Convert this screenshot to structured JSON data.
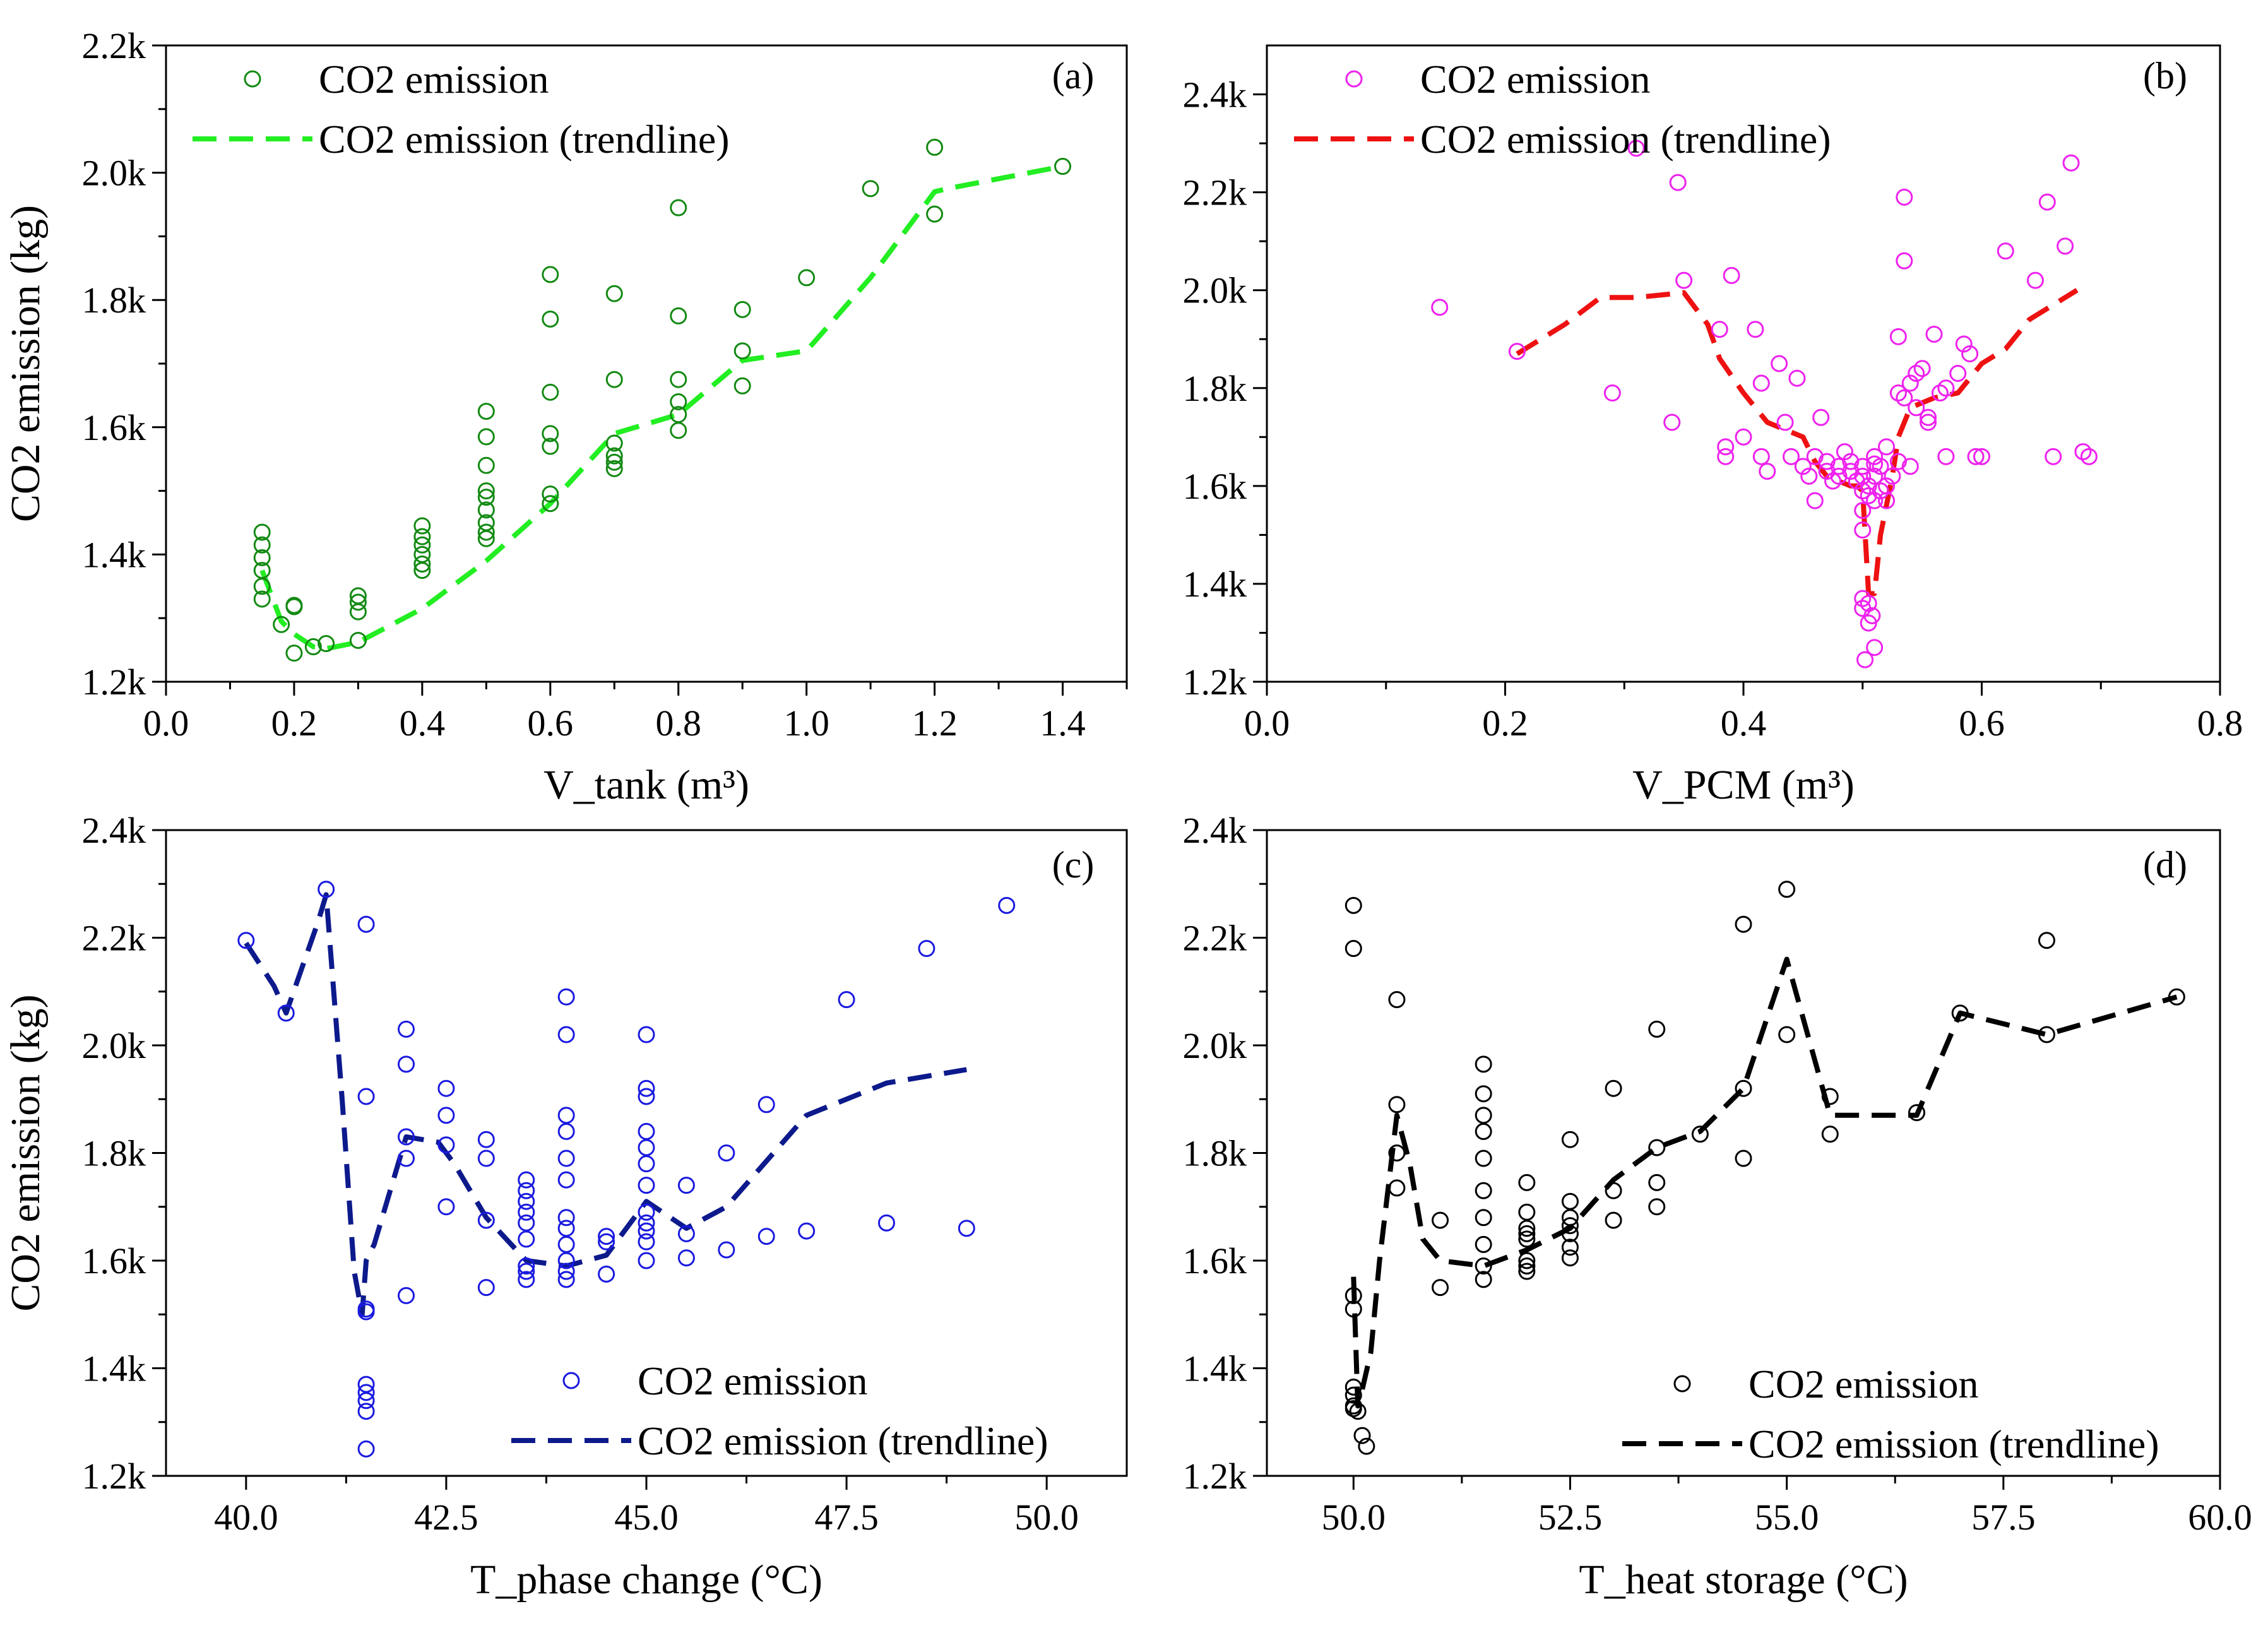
{
  "chart_data": [
    {
      "type": "scatter",
      "panel_label": "(a)",
      "xlabel": "V_tank (m³)",
      "ylabel": "CO2 emission (kg)",
      "xlim": [
        0.0,
        1.5
      ],
      "ylim": [
        1200,
        2200
      ],
      "xticks": [
        "0.0",
        "0.2",
        "0.4",
        "0.6",
        "0.8",
        "1.0",
        "1.2",
        "1.4"
      ],
      "yticks": [
        "1.2k",
        "1.4k",
        "1.6k",
        "1.8k",
        "2.0k",
        "2.2k"
      ],
      "legend_position": "top-left",
      "series": [
        {
          "name": "CO2 emission",
          "kind": "scatter",
          "color": "#138a13",
          "x": [
            0.15,
            0.15,
            0.15,
            0.15,
            0.15,
            0.15,
            0.18,
            0.2,
            0.2,
            0.2,
            0.23,
            0.25,
            0.3,
            0.3,
            0.3,
            0.3,
            0.4,
            0.4,
            0.4,
            0.4,
            0.4,
            0.4,
            0.5,
            0.5,
            0.5,
            0.5,
            0.5,
            0.5,
            0.5,
            0.5,
            0.5,
            0.6,
            0.6,
            0.6,
            0.6,
            0.6,
            0.6,
            0.6,
            0.7,
            0.7,
            0.7,
            0.7,
            0.7,
            0.7,
            0.8,
            0.8,
            0.8,
            0.8,
            0.8,
            0.8,
            0.9,
            0.9,
            0.9,
            1.0,
            1.1,
            1.2,
            1.2,
            1.4
          ],
          "y": [
            1330,
            1350,
            1375,
            1395,
            1415,
            1435,
            1290,
            1320,
            1318,
            1245,
            1255,
            1260,
            1265,
            1310,
            1325,
            1335,
            1375,
            1385,
            1400,
            1415,
            1428,
            1445,
            1425,
            1435,
            1450,
            1470,
            1490,
            1500,
            1540,
            1585,
            1625,
            1480,
            1495,
            1570,
            1590,
            1655,
            1770,
            1840,
            1535,
            1545,
            1555,
            1575,
            1675,
            1810,
            1595,
            1620,
            1640,
            1675,
            1775,
            1945,
            1665,
            1720,
            1785,
            1835,
            1975,
            1935,
            2040,
            2010
          ]
        },
        {
          "name": "CO2 emission (trendline)",
          "kind": "line",
          "color": "#22ee22",
          "x": [
            0.15,
            0.18,
            0.2,
            0.23,
            0.25,
            0.3,
            0.4,
            0.5,
            0.6,
            0.7,
            0.8,
            0.9,
            1.0,
            1.1,
            1.2,
            1.22,
            1.4
          ],
          "y": [
            1375,
            1295,
            1275,
            1255,
            1252,
            1262,
            1315,
            1390,
            1480,
            1590,
            1620,
            1705,
            1720,
            1835,
            1970,
            1975,
            2010
          ]
        }
      ]
    },
    {
      "type": "scatter",
      "panel_label": "(b)",
      "xlabel": "V_PCM (m³)",
      "ylabel": "CO2 emission (kg)",
      "xlim": [
        0.0,
        0.8
      ],
      "ylim": [
        1200,
        2500
      ],
      "xticks": [
        "0.0",
        "0.2",
        "0.4",
        "0.6",
        "0.8"
      ],
      "yticks": [
        "1.2k",
        "1.4k",
        "1.6k",
        "1.8k",
        "2.0k",
        "2.2k",
        "2.4k"
      ],
      "legend_position": "top-left",
      "series": [
        {
          "name": "CO2 emission",
          "kind": "scatter",
          "color": "#ee22ee",
          "x": [
            0.145,
            0.21,
            0.29,
            0.31,
            0.34,
            0.345,
            0.35,
            0.38,
            0.385,
            0.385,
            0.39,
            0.4,
            0.41,
            0.415,
            0.415,
            0.42,
            0.43,
            0.435,
            0.44,
            0.445,
            0.45,
            0.455,
            0.46,
            0.46,
            0.465,
            0.47,
            0.47,
            0.475,
            0.48,
            0.48,
            0.485,
            0.49,
            0.49,
            0.495,
            0.5,
            0.5,
            0.5,
            0.5,
            0.5,
            0.505,
            0.505,
            0.51,
            0.51,
            0.51,
            0.51,
            0.515,
            0.515,
            0.52,
            0.52,
            0.52,
            0.525,
            0.53,
            0.53,
            0.53,
            0.535,
            0.535,
            0.535,
            0.54,
            0.54,
            0.545,
            0.545,
            0.55,
            0.555,
            0.555,
            0.56,
            0.565,
            0.57,
            0.57,
            0.58,
            0.585,
            0.59,
            0.595,
            0.6,
            0.62,
            0.645,
            0.655,
            0.66,
            0.67,
            0.675,
            0.685,
            0.69,
            0.5,
            0.505,
            0.505,
            0.508,
            0.51,
            0.5,
            0.502
          ],
          "y": [
            1965,
            1875,
            1790,
            2290,
            1730,
            2220,
            2020,
            1920,
            1660,
            1680,
            2030,
            1700,
            1920,
            1660,
            1810,
            1630,
            1850,
            1730,
            1660,
            1820,
            1640,
            1620,
            1660,
            1570,
            1740,
            1650,
            1630,
            1610,
            1620,
            1640,
            1670,
            1650,
            1630,
            1610,
            1550,
            1510,
            1590,
            1620,
            1640,
            1580,
            1600,
            1570,
            1620,
            1645,
            1660,
            1590,
            1640,
            1570,
            1600,
            1680,
            1620,
            1650,
            1790,
            1905,
            1780,
            2060,
            2190,
            1640,
            1810,
            1760,
            1830,
            1840,
            1730,
            1740,
            1910,
            1790,
            1800,
            1660,
            1830,
            1890,
            1870,
            1660,
            1660,
            2080,
            2020,
            2180,
            1660,
            2090,
            2260,
            1670,
            1660,
            1370,
            1360,
            1320,
            1335,
            1270,
            1350,
            1245
          ]
        },
        {
          "name": "CO2 emission (trendline)",
          "kind": "line",
          "color": "#ee1111",
          "x": [
            0.21,
            0.25,
            0.28,
            0.31,
            0.35,
            0.37,
            0.38,
            0.4,
            0.42,
            0.43,
            0.45,
            0.46,
            0.47,
            0.48,
            0.49,
            0.495,
            0.5,
            0.505,
            0.51,
            0.515,
            0.52,
            0.525,
            0.53,
            0.54,
            0.56,
            0.58,
            0.6,
            0.62,
            0.64,
            0.68
          ],
          "y": [
            1870,
            1930,
            1985,
            1985,
            1995,
            1930,
            1860,
            1790,
            1730,
            1720,
            1700,
            1650,
            1620,
            1610,
            1600,
            1600,
            1590,
            1380,
            1380,
            1500,
            1560,
            1620,
            1700,
            1760,
            1780,
            1790,
            1850,
            1880,
            1940,
            2000
          ]
        }
      ]
    },
    {
      "type": "scatter",
      "panel_label": "(c)",
      "xlabel": "T_phase change (°C)",
      "ylabel": "CO2 emission (kg)",
      "xlim": [
        39.0,
        51.0
      ],
      "ylim": [
        1200,
        2400
      ],
      "xticks": [
        "40.0",
        "42.5",
        "45.0",
        "47.5",
        "50.0"
      ],
      "yticks": [
        "1.2k",
        "1.4k",
        "1.6k",
        "1.8k",
        "2.0k",
        "2.2k",
        "2.4k"
      ],
      "legend_position": "bottom-right",
      "series": [
        {
          "name": "CO2 emission",
          "kind": "scatter",
          "color": "#1a1ae0",
          "x": [
            40,
            40.5,
            41,
            41.5,
            41.5,
            41.5,
            41.5,
            41.5,
            41.5,
            41.5,
            41.5,
            41.5,
            42,
            42,
            42,
            42,
            42,
            42.5,
            42.5,
            42.5,
            42.5,
            43,
            43,
            43,
            43,
            43.5,
            43.5,
            43.5,
            43.5,
            43.5,
            43.5,
            43.5,
            43.5,
            43.5,
            44,
            44,
            44,
            44,
            44,
            44,
            44,
            44,
            44,
            44,
            44,
            44,
            44.5,
            44.5,
            44.5,
            45,
            45,
            45,
            45,
            45,
            45,
            45,
            45,
            45,
            45,
            45,
            45,
            45.5,
            45.5,
            45.5,
            46,
            46,
            46.5,
            46.5,
            47,
            47.5,
            48,
            48.5,
            49,
            49.5
          ],
          "y": [
            2195,
            2060,
            2290,
            2225,
            1905,
            1510,
            1505,
            1370,
            1355,
            1340,
            1320,
            1250,
            2030,
            1965,
            1830,
            1790,
            1535,
            1920,
            1870,
            1815,
            1700,
            1825,
            1790,
            1675,
            1550,
            1750,
            1730,
            1710,
            1690,
            1670,
            1640,
            1590,
            1580,
            1565,
            2090,
            2020,
            1870,
            1840,
            1790,
            1750,
            1680,
            1660,
            1630,
            1600,
            1580,
            1565,
            1645,
            1635,
            1575,
            2020,
            1920,
            1905,
            1840,
            1810,
            1780,
            1740,
            1690,
            1670,
            1655,
            1635,
            1600,
            1740,
            1650,
            1605,
            1800,
            1620,
            1890,
            1645,
            1655,
            2085,
            1670,
            2180,
            1660,
            2260
          ]
        },
        {
          "name": "CO2 emission (trendline)",
          "kind": "line",
          "color": "#0d1a8c",
          "x": [
            40,
            40.35,
            40.5,
            40.9,
            41,
            41.2,
            41.35,
            41.45,
            41.5,
            41.6,
            42,
            42.4,
            42.6,
            43,
            43.5,
            44,
            44.5,
            45,
            45.5,
            46,
            47,
            48,
            49
          ],
          "y": [
            2190,
            2110,
            2060,
            2230,
            2280,
            1900,
            1580,
            1500,
            1600,
            1630,
            1830,
            1820,
            1780,
            1680,
            1600,
            1590,
            1610,
            1710,
            1660,
            1700,
            1870,
            1930,
            1955
          ]
        }
      ]
    },
    {
      "type": "scatter",
      "panel_label": "(d)",
      "xlabel": "T_heat storage (°C)",
      "ylabel": "CO2 emission (kg)",
      "xlim": [
        49.0,
        60.0
      ],
      "ylim": [
        1200,
        2400
      ],
      "xticks": [
        "50.0",
        "52.5",
        "55.0",
        "57.5",
        "60.0"
      ],
      "yticks": [
        "1.2k",
        "1.4k",
        "1.6k",
        "1.8k",
        "2.0k",
        "2.2k",
        "2.4k"
      ],
      "legend_position": "bottom-right",
      "series": [
        {
          "name": "CO2 emission",
          "kind": "scatter",
          "color": "#000000",
          "x": [
            50,
            50,
            50,
            50,
            50,
            50,
            50,
            50,
            50.05,
            50.1,
            50.15,
            50.5,
            50.5,
            50.5,
            50.5,
            51,
            51,
            51.5,
            51.5,
            51.5,
            51.5,
            51.5,
            51.5,
            51.5,
            51.5,
            51.5,
            51.5,
            52,
            52,
            52,
            52,
            52,
            52,
            52,
            52,
            52.5,
            52.5,
            52.5,
            52.5,
            52.5,
            52.5,
            52.5,
            53,
            53,
            53,
            53.5,
            53.5,
            53.5,
            53.5,
            54,
            54.5,
            54.5,
            54.5,
            55,
            55,
            55.5,
            55.5,
            56.5,
            57,
            58,
            58,
            59.5
          ],
          "y": [
            2260,
            2180,
            1535,
            1510,
            1365,
            1350,
            1330,
            1325,
            1320,
            1275,
            1255,
            2085,
            1890,
            1800,
            1735,
            1675,
            1550,
            1965,
            1910,
            1870,
            1840,
            1790,
            1730,
            1680,
            1630,
            1590,
            1565,
            1745,
            1690,
            1660,
            1640,
            1600,
            1590,
            1580,
            1650,
            1825,
            1710,
            1680,
            1665,
            1650,
            1625,
            1605,
            1920,
            1730,
            1675,
            2030,
            1810,
            1745,
            1700,
            1835,
            2225,
            1920,
            1790,
            2290,
            2020,
            1905,
            1835,
            1875,
            2060,
            2195,
            2020,
            2090
          ]
        },
        {
          "name": "CO2 emission (trendline)",
          "kind": "line",
          "color": "#000000",
          "x": [
            50,
            50.05,
            50.1,
            50.2,
            50.3,
            50.5,
            50.65,
            50.8,
            51,
            51.5,
            52,
            52.5,
            53,
            53.5,
            54,
            54.5,
            55,
            55.5,
            56,
            56.5,
            57,
            58,
            59.5
          ],
          "y": [
            1570,
            1330,
            1360,
            1430,
            1600,
            1870,
            1780,
            1640,
            1600,
            1590,
            1620,
            1660,
            1750,
            1810,
            1840,
            1920,
            2160,
            1870,
            1870,
            1870,
            2060,
            2020,
            2090
          ]
        }
      ]
    }
  ]
}
